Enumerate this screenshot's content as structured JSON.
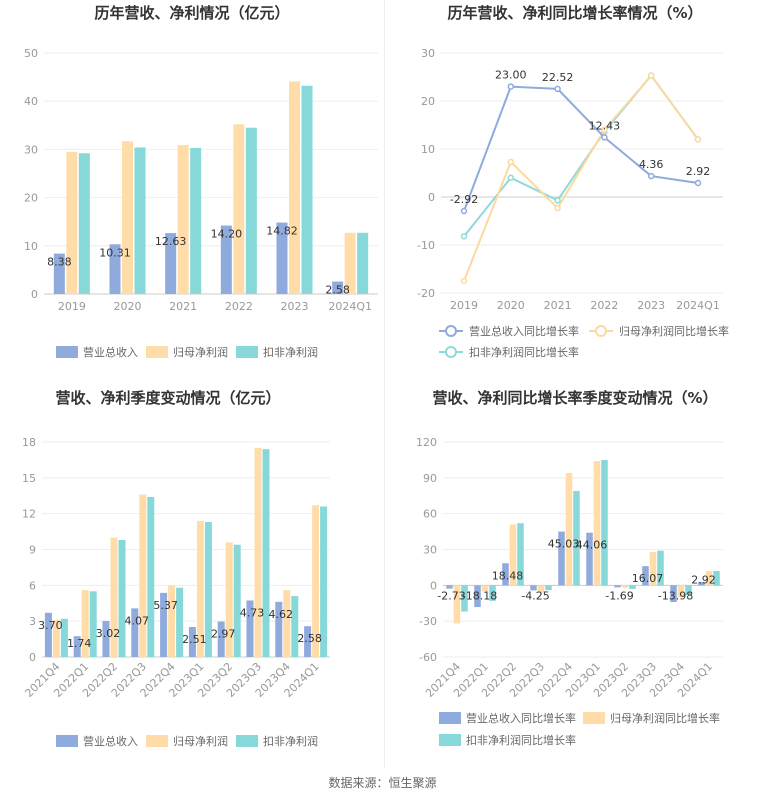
{
  "footer": {
    "source": "数据来源：恒生聚源"
  },
  "colors": {
    "blue": "#8faadc",
    "yellow": "#ffdca8",
    "teal": "#86d8d9",
    "blue_line": "#8faadc",
    "yellow_line": "#fdd89f",
    "teal_line": "#8ed9db",
    "label": "#333333",
    "axis_text": "#999999",
    "grid": "#eeeeee"
  },
  "chart_data": [
    {
      "id": "annual-revenue-profit",
      "type": "bar",
      "title": "历年营收、净利情况（亿元）",
      "categories": [
        "2019",
        "2020",
        "2021",
        "2022",
        "2023",
        "2024Q1"
      ],
      "ylim": [
        0,
        50
      ],
      "yticks": [
        "0",
        "10",
        "20",
        "30",
        "40",
        "50"
      ],
      "grid": true,
      "legend_position": "bottom",
      "series": [
        {
          "name": "营业总收入",
          "values": [
            8.38,
            10.31,
            12.63,
            14.2,
            14.82,
            2.58
          ],
          "labels": [
            "8.38",
            "10.31",
            "12.63",
            "14.20",
            "14.82",
            "2.58"
          ]
        },
        {
          "name": "归母净利润",
          "values": [
            29.5,
            31.7,
            30.9,
            35.2,
            44.1,
            12.7
          ]
        },
        {
          "name": "扣非净利润",
          "values": [
            29.2,
            30.4,
            30.3,
            34.5,
            43.2,
            12.7
          ]
        }
      ]
    },
    {
      "id": "annual-growth",
      "type": "line",
      "title": "历年营收、净利同比增长率情况（%）",
      "categories": [
        "2019",
        "2020",
        "2021",
        "2022",
        "2023",
        "2024Q1"
      ],
      "ylim": [
        -20,
        30
      ],
      "yticks": [
        "-20",
        "-10",
        "0",
        "10",
        "20",
        "30"
      ],
      "grid": true,
      "legend_position": "bottom",
      "series": [
        {
          "name": "营业总收入同比增长率",
          "values": [
            -2.92,
            23.0,
            22.52,
            12.43,
            4.36,
            2.92
          ],
          "labels": [
            "-2.92",
            "23.00",
            "22.52",
            "12.43",
            "4.36",
            "2.92"
          ]
        },
        {
          "name": "归母净利润同比增长率",
          "values": [
            -17.5,
            7.3,
            -2.3,
            14.0,
            25.3,
            12.0
          ]
        },
        {
          "name": "扣非净利润同比增长率",
          "values": [
            -8.2,
            4.0,
            -0.7,
            13.6,
            25.3,
            12.0
          ]
        }
      ]
    },
    {
      "id": "quarterly-revenue-profit",
      "type": "bar",
      "title": "营收、净利季度变动情况（亿元）",
      "categories": [
        "2021Q4",
        "2022Q1",
        "2022Q2",
        "2022Q3",
        "2022Q4",
        "2023Q1",
        "2023Q2",
        "2023Q3",
        "2023Q4",
        "2024Q1"
      ],
      "ylim": [
        0,
        18
      ],
      "yticks": [
        "0",
        "3",
        "6",
        "9",
        "12",
        "15",
        "18"
      ],
      "grid": true,
      "legend_position": "bottom",
      "series": [
        {
          "name": "营业总收入",
          "values": [
            3.7,
            1.74,
            3.02,
            4.07,
            5.37,
            2.51,
            2.97,
            4.73,
            4.62,
            2.58
          ],
          "labels": [
            "3.70",
            "1.74",
            "3.02",
            "4.07",
            "5.37",
            "2.51",
            "2.97",
            "4.73",
            "4.62",
            "2.58"
          ]
        },
        {
          "name": "归母净利润",
          "values": [
            3.1,
            5.6,
            10.0,
            13.6,
            6.0,
            11.4,
            9.6,
            17.5,
            5.6,
            12.7
          ]
        },
        {
          "name": "扣非净利润",
          "values": [
            3.2,
            5.5,
            9.8,
            13.4,
            5.8,
            11.3,
            9.4,
            17.4,
            5.1,
            12.6
          ]
        }
      ]
    },
    {
      "id": "quarterly-growth",
      "type": "bar",
      "title": "营收、净利同比增长率季度变动情况（%）",
      "categories": [
        "2021Q4",
        "2022Q1",
        "2022Q2",
        "2022Q3",
        "2022Q4",
        "2023Q1",
        "2023Q2",
        "2023Q3",
        "2023Q4",
        "2024Q1"
      ],
      "ylim": [
        -60,
        120
      ],
      "yticks": [
        "-60",
        "-30",
        "0",
        "30",
        "60",
        "90",
        "120"
      ],
      "grid": true,
      "legend_position": "bottom",
      "series": [
        {
          "name": "营业总收入同比增长率",
          "values": [
            -2.73,
            -18.18,
            18.48,
            -4.25,
            45.03,
            44.06,
            -1.69,
            16.07,
            -13.98,
            2.92
          ],
          "labels": [
            "-2.73",
            "-18.18",
            "18.48",
            "-4.25",
            "45.03",
            "44.06",
            "-1.69",
            "16.07",
            "-13.98",
            "2.92"
          ]
        },
        {
          "name": "归母净利润同比增长率",
          "values": [
            -32,
            -5,
            51,
            -6,
            94,
            104,
            -2,
            28,
            -10,
            12
          ]
        },
        {
          "name": "扣非净利润同比增长率",
          "values": [
            -22,
            -13,
            52,
            -4,
            79,
            105,
            -3,
            29,
            -8,
            12
          ]
        }
      ]
    }
  ]
}
